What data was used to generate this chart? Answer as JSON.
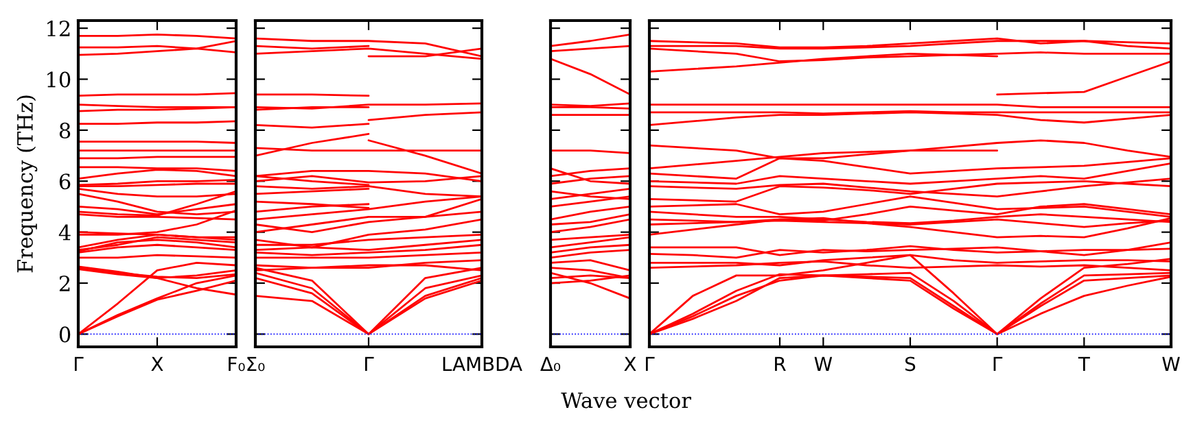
{
  "chart_data": [
    {
      "type": "line",
      "ylabel": "Frequency (THz)",
      "ylim": [
        -0.5,
        12.3
      ],
      "yticks": [
        0,
        2,
        4,
        6,
        8,
        10,
        12
      ],
      "categories": [
        "Γ",
        null,
        "X",
        null,
        "F₀"
      ],
      "ref_lines": [
        {
          "axis": "y",
          "value": 0,
          "color": "#0000ff",
          "line_style": "dotted"
        }
      ],
      "series": [
        {
          "color": "#ff0000",
          "values": [
            0,
            0.7,
            1.35,
            1.7,
            2.1
          ]
        },
        {
          "color": "#ff0000",
          "values": [
            0,
            0.75,
            1.4,
            2.0,
            2.3
          ]
        },
        {
          "color": "#ff0000",
          "values": [
            0,
            1.2,
            2.5,
            2.8,
            2.7
          ]
        },
        {
          "color": "#ff0000",
          "values": [
            2.6,
            2.4,
            2.25,
            2.2,
            2.35
          ]
        },
        {
          "color": "#ff0000",
          "values": [
            2.65,
            2.45,
            2.2,
            1.8,
            1.55
          ]
        },
        {
          "color": "#ff0000",
          "values": [
            2.55,
            2.35,
            2.2,
            2.3,
            2.5
          ]
        },
        {
          "color": "#ff0000",
          "values": [
            3.0,
            3.0,
            3.1,
            3.05,
            3.0
          ]
        },
        {
          "color": "#ff0000",
          "values": [
            3.2,
            3.4,
            3.5,
            3.4,
            3.3
          ]
        },
        {
          "color": "#ff0000",
          "values": [
            3.25,
            3.6,
            3.7,
            3.6,
            3.4
          ]
        },
        {
          "color": "#ff0000",
          "values": [
            3.3,
            3.5,
            3.8,
            3.7,
            3.6
          ]
        },
        {
          "color": "#ff0000",
          "values": [
            3.4,
            3.7,
            3.9,
            3.8,
            3.8
          ]
        },
        {
          "color": "#ff0000",
          "values": [
            3.9,
            3.9,
            4.0,
            4.3,
            4.85
          ]
        },
        {
          "color": "#ff0000",
          "values": [
            4.0,
            3.95,
            3.9,
            3.8,
            3.7
          ]
        },
        {
          "color": "#ff0000",
          "values": [
            4.7,
            4.6,
            4.6,
            4.55,
            4.5
          ]
        },
        {
          "color": "#ff0000",
          "values": [
            4.8,
            4.7,
            4.65,
            5.1,
            5.6
          ]
        },
        {
          "color": "#ff0000",
          "values": [
            5.0,
            4.9,
            4.7,
            4.9,
            5.1
          ]
        },
        {
          "color": "#ff0000",
          "values": [
            5.5,
            5.2,
            4.8,
            4.7,
            4.8
          ]
        },
        {
          "color": "#ff0000",
          "values": [
            5.7,
            5.5,
            5.4,
            5.4,
            5.5
          ]
        },
        {
          "color": "#ff0000",
          "values": [
            5.8,
            5.8,
            5.85,
            5.9,
            5.9
          ]
        },
        {
          "color": "#ff0000",
          "values": [
            5.85,
            5.9,
            6.0,
            6.0,
            6.05
          ]
        },
        {
          "color": "#ff0000",
          "values": [
            6.1,
            6.3,
            6.45,
            6.4,
            6.2
          ]
        },
        {
          "color": "#ff0000",
          "values": [
            6.55,
            6.55,
            6.5,
            6.5,
            6.4
          ]
        },
        {
          "color": "#ff0000",
          "values": [
            6.9,
            6.9,
            6.95,
            6.95,
            6.95
          ]
        },
        {
          "color": "#ff0000",
          "values": [
            7.2,
            7.2,
            7.2,
            7.2,
            7.2
          ]
        },
        {
          "color": "#ff0000",
          "values": [
            7.55,
            7.55,
            7.55,
            7.55,
            7.5
          ]
        },
        {
          "color": "#ff0000",
          "values": [
            8.25,
            8.25,
            8.3,
            8.3,
            8.35
          ]
        },
        {
          "color": "#ff0000",
          "values": [
            8.75,
            8.8,
            8.8,
            8.85,
            8.9
          ]
        },
        {
          "color": "#ff0000",
          "values": [
            9.0,
            8.95,
            8.9,
            8.9,
            8.9
          ]
        },
        {
          "color": "#ff0000",
          "values": [
            9.35,
            9.4,
            9.4,
            9.4,
            9.45
          ]
        },
        {
          "color": "#ff0000",
          "values": [
            10.95,
            11.0,
            11.1,
            11.2,
            11.5
          ]
        },
        {
          "color": "#ff0000",
          "values": [
            11.25,
            11.25,
            11.3,
            11.2,
            11.05
          ]
        },
        {
          "color": "#ff0000",
          "values": [
            11.7,
            11.7,
            11.75,
            11.7,
            11.6
          ]
        }
      ]
    },
    {
      "type": "line",
      "tick_labels": "x",
      "ylim": [
        -0.5,
        12.3
      ],
      "yticks": [
        0,
        2,
        4,
        6,
        8,
        10,
        12
      ],
      "categories": [
        "Σ₀",
        null,
        "Γ",
        null,
        "LAMBDA"
      ],
      "ref_lines": [
        {
          "axis": "y",
          "value": 0,
          "color": "#0000ff",
          "line_style": "dotted"
        }
      ],
      "series": [
        {
          "color": "#ff0000",
          "values": [
            1.5,
            1.3,
            0,
            1.4,
            2.1
          ]
        },
        {
          "color": "#ff0000",
          "values": [
            2.2,
            1.6,
            0,
            1.5,
            2.2
          ]
        },
        {
          "color": "#ff0000",
          "values": [
            2.4,
            1.8,
            0,
            1.8,
            2.3
          ]
        },
        {
          "color": "#ff0000",
          "values": [
            2.6,
            2.1,
            0,
            2.2,
            2.6
          ]
        },
        {
          "color": "#ff0000",
          "values": [
            2.5,
            2.6,
            2.7,
            2.7,
            2.5
          ]
        },
        {
          "color": "#ff0000",
          "values": [
            2.7,
            2.6,
            2.6,
            2.8,
            2.9
          ]
        },
        {
          "color": "#ff0000",
          "values": [
            3.0,
            3.0,
            3.0,
            3.1,
            3.2
          ]
        },
        {
          "color": "#ff0000",
          "values": [
            3.2,
            3.1,
            3.2,
            3.3,
            3.5
          ]
        },
        {
          "color": "#ff0000",
          "values": [
            3.3,
            3.4,
            3.3,
            3.5,
            3.7
          ]
        },
        {
          "color": "#ff0000",
          "values": [
            3.5,
            3.5,
            3.7,
            3.8,
            3.9
          ]
        },
        {
          "color": "#ff0000",
          "values": [
            3.7,
            3.4,
            3.9,
            4.1,
            4.5
          ]
        },
        {
          "color": "#ff0000",
          "values": [
            4.3,
            4.0,
            4.4,
            4.6,
            4.8
          ]
        },
        {
          "color": "#ff0000",
          "values": [
            4.0,
            4.3,
            4.6,
            4.6,
            5.3
          ]
        },
        {
          "color": "#ff0000",
          "values": [
            4.5,
            4.7,
            4.9,
            5.2,
            5.4
          ]
        },
        {
          "color": "#ff0000",
          "values": [
            4.8,
            5.0,
            5.1,
            null,
            null
          ]
        },
        {
          "color": "#ff0000",
          "values": [
            5.2,
            5.1,
            4.95,
            null,
            null
          ]
        },
        {
          "color": "#ff0000",
          "values": [
            5.5,
            5.6,
            5.7,
            null,
            null
          ]
        },
        {
          "color": "#ff0000",
          "values": [
            5.8,
            5.7,
            5.8,
            5.5,
            5.4
          ]
        },
        {
          "color": "#ff0000",
          "values": [
            6.0,
            6.2,
            5.95,
            6.0,
            6.2
          ]
        },
        {
          "color": "#ff0000",
          "values": [
            6.2,
            6.4,
            6.4,
            6.3,
            6.0
          ]
        },
        {
          "color": "#ff0000",
          "values": [
            6.2,
            6.0,
            5.85,
            null,
            null
          ]
        },
        {
          "color": "#ff0000",
          "values": [
            7.0,
            7.5,
            7.85,
            null,
            null
          ]
        },
        {
          "color": "#ff0000",
          "values": [
            7.3,
            7.2,
            7.2,
            7.2,
            7.2
          ]
        },
        {
          "color": "#ff0000",
          "values": [
            null,
            null,
            7.6,
            7.0,
            6.3
          ]
        },
        {
          "color": "#ff0000",
          "values": [
            8.2,
            8.1,
            8.25,
            null,
            null
          ]
        },
        {
          "color": "#ff0000",
          "values": [
            null,
            null,
            8.4,
            8.6,
            8.7
          ]
        },
        {
          "color": "#ff0000",
          "values": [
            8.8,
            8.9,
            8.9,
            null,
            null
          ]
        },
        {
          "color": "#ff0000",
          "values": [
            8.9,
            8.85,
            9.0,
            9.0,
            9.05
          ]
        },
        {
          "color": "#ff0000",
          "values": [
            9.4,
            9.4,
            9.35,
            null,
            null
          ]
        },
        {
          "color": "#ff0000",
          "values": [
            null,
            null,
            10.9,
            10.9,
            11.2
          ]
        },
        {
          "color": "#ff0000",
          "values": [
            11.0,
            11.1,
            11.2,
            11.0,
            10.8
          ]
        },
        {
          "color": "#ff0000",
          "values": [
            11.3,
            11.2,
            11.3,
            null,
            null
          ]
        },
        {
          "color": "#ff0000",
          "values": [
            11.6,
            11.5,
            11.5,
            11.4,
            10.9
          ]
        }
      ]
    },
    {
      "type": "line",
      "tick_labels": "x",
      "ylim": [
        -0.5,
        12.3
      ],
      "yticks": [
        0,
        2,
        4,
        6,
        8,
        10,
        12
      ],
      "categories": [
        "Δ₀",
        null,
        "X"
      ],
      "ref_lines": [
        {
          "axis": "y",
          "value": 0,
          "color": "#0000ff",
          "line_style": "dotted"
        }
      ],
      "series": [
        {
          "color": "#ff0000",
          "values": [
            2.0,
            2.1,
            2.3
          ]
        },
        {
          "color": "#ff0000",
          "values": [
            2.2,
            2.3,
            2.2
          ]
        },
        {
          "color": "#ff0000",
          "values": [
            2.4,
            2.0,
            1.4
          ]
        },
        {
          "color": "#ff0000",
          "values": [
            2.6,
            2.5,
            2.2
          ]
        },
        {
          "color": "#ff0000",
          "values": [
            2.8,
            2.9,
            2.5
          ]
        },
        {
          "color": "#ff0000",
          "values": [
            3.0,
            3.2,
            3.3
          ]
        },
        {
          "color": "#ff0000",
          "values": [
            3.2,
            3.4,
            3.5
          ]
        },
        {
          "color": "#ff0000",
          "values": [
            3.4,
            3.6,
            3.8
          ]
        },
        {
          "color": "#ff0000",
          "values": [
            3.7,
            3.8,
            3.9
          ]
        },
        {
          "color": "#ff0000",
          "values": [
            4.0,
            4.2,
            4.5
          ]
        },
        {
          "color": "#ff0000",
          "values": [
            4.3,
            4.4,
            4.7
          ]
        },
        {
          "color": "#ff0000",
          "values": [
            4.5,
            4.8,
            5.0
          ]
        },
        {
          "color": "#ff0000",
          "values": [
            5.0,
            5.2,
            5.4
          ]
        },
        {
          "color": "#ff0000",
          "values": [
            5.3,
            5.5,
            5.7
          ]
        },
        {
          "color": "#ff0000",
          "values": [
            5.6,
            5.4,
            5.3
          ]
        },
        {
          "color": "#ff0000",
          "values": [
            5.9,
            6.1,
            6.2
          ]
        },
        {
          "color": "#ff0000",
          "values": [
            6.2,
            6.4,
            6.5
          ]
        },
        {
          "color": "#ff0000",
          "values": [
            6.5,
            6.0,
            5.9
          ]
        },
        {
          "color": "#ff0000",
          "values": [
            7.2,
            7.2,
            7.1
          ]
        },
        {
          "color": "#ff0000",
          "values": [
            8.6,
            8.6,
            8.6
          ]
        },
        {
          "color": "#ff0000",
          "values": [
            8.9,
            8.9,
            8.85
          ]
        },
        {
          "color": "#ff0000",
          "values": [
            9.0,
            8.95,
            9.05
          ]
        },
        {
          "color": "#ff0000",
          "values": [
            10.8,
            10.2,
            9.4
          ]
        },
        {
          "color": "#ff0000",
          "values": [
            11.1,
            11.2,
            11.3
          ]
        },
        {
          "color": "#ff0000",
          "values": [
            11.3,
            11.5,
            11.75
          ]
        }
      ]
    },
    {
      "type": "line",
      "tick_labels": "x",
      "xlabel": "Wave vector",
      "ylim": [
        -0.5,
        12.3
      ],
      "yticks": [
        0,
        2,
        4,
        6,
        8,
        10,
        12
      ],
      "categories": [
        "Γ",
        null,
        null,
        "R",
        "W",
        null,
        "S",
        null,
        "Γ",
        null,
        "T",
        null,
        "W"
      ],
      "ref_lines": [
        {
          "axis": "y",
          "value": 0,
          "color": "#0000ff",
          "line_style": "dotted"
        }
      ],
      "series": [
        {
          "color": "#ff0000",
          "values": [
            0,
            0.7,
            1.5,
            2.1,
            2.3,
            2.25,
            2.2,
            1.1,
            0,
            0.8,
            1.5,
            1.9,
            2.25
          ]
        },
        {
          "color": "#ff0000",
          "values": [
            0,
            0.6,
            1.3,
            2.2,
            2.3,
            2.2,
            2.1,
            1.0,
            0,
            1.1,
            2.1,
            2.2,
            2.3
          ]
        },
        {
          "color": "#ff0000",
          "values": [
            0,
            0.8,
            1.7,
            2.35,
            2.3,
            2.35,
            2.4,
            1.3,
            0,
            1.2,
            2.3,
            2.35,
            2.4
          ]
        },
        {
          "color": "#ff0000",
          "values": [
            0,
            1.5,
            2.3,
            2.3,
            2.5,
            2.8,
            3.1,
            1.6,
            0,
            1.4,
            2.6,
            2.75,
            2.95
          ]
        },
        {
          "color": "#ff0000",
          "values": [
            2.6,
            2.65,
            2.7,
            2.8,
            2.85,
            2.7,
            2.6,
            2.65,
            2.7,
            2.65,
            2.7,
            2.6,
            2.5
          ]
        },
        {
          "color": "#ff0000",
          "values": [
            2.8,
            2.8,
            2.8,
            2.7,
            2.9,
            3.0,
            3.1,
            2.9,
            2.8,
            2.85,
            2.9,
            2.9,
            2.85
          ]
        },
        {
          "color": "#ff0000",
          "values": [
            3.15,
            3.1,
            3.0,
            3.3,
            3.2,
            3.3,
            3.45,
            3.3,
            3.2,
            3.25,
            3.3,
            3.3,
            3.35
          ]
        },
        {
          "color": "#ff0000",
          "values": [
            3.4,
            3.4,
            3.4,
            3.1,
            3.3,
            3.25,
            3.3,
            3.35,
            3.4,
            3.25,
            3.1,
            3.3,
            3.6
          ]
        },
        {
          "color": "#ff0000",
          "values": [
            3.9,
            4.1,
            4.3,
            4.5,
            4.55,
            4.35,
            4.2,
            4.0,
            3.8,
            3.85,
            3.8,
            4.15,
            4.55
          ]
        },
        {
          "color": "#ff0000",
          "values": [
            4.3,
            4.35,
            4.4,
            4.45,
            4.4,
            4.35,
            4.3,
            4.4,
            4.5,
            4.35,
            4.2,
            4.35,
            4.45
          ]
        },
        {
          "color": "#ff0000",
          "values": [
            4.5,
            4.45,
            4.4,
            4.5,
            4.45,
            4.7,
            5.0,
            4.85,
            4.7,
            5.0,
            5.1,
            4.9,
            4.7
          ]
        },
        {
          "color": "#ff0000",
          "values": [
            4.8,
            4.7,
            4.6,
            4.6,
            4.5,
            4.4,
            4.35,
            4.45,
            4.6,
            4.7,
            4.6,
            4.5,
            4.4
          ]
        },
        {
          "color": "#ff0000",
          "values": [
            5.0,
            5.05,
            5.1,
            4.7,
            4.8,
            5.1,
            5.4,
            5.15,
            4.9,
            4.95,
            5.0,
            4.8,
            4.6
          ]
        },
        {
          "color": "#ff0000",
          "values": [
            5.3,
            5.25,
            5.2,
            5.8,
            5.75,
            5.65,
            5.5,
            5.7,
            5.9,
            5.95,
            6.0,
            5.9,
            5.8
          ]
        },
        {
          "color": "#ff0000",
          "values": [
            5.8,
            5.75,
            5.7,
            5.85,
            5.9,
            5.75,
            5.6,
            5.5,
            5.4,
            5.6,
            5.8,
            5.95,
            6.1
          ]
        },
        {
          "color": "#ff0000",
          "values": [
            6.0,
            5.95,
            5.9,
            6.2,
            6.1,
            6.0,
            5.9,
            6.0,
            6.1,
            6.2,
            6.1,
            6.4,
            6.7
          ]
        },
        {
          "color": "#ff0000",
          "values": [
            6.3,
            6.2,
            6.1,
            6.9,
            6.8,
            6.55,
            6.3,
            6.4,
            6.5,
            6.55,
            6.6,
            6.75,
            6.9
          ]
        },
        {
          "color": "#ff0000",
          "values": [
            6.5,
            6.65,
            6.8,
            6.95,
            7.1,
            7.15,
            7.2,
            7.35,
            7.5,
            7.6,
            7.5,
            7.2,
            6.95
          ]
        },
        {
          "color": "#ff0000",
          "values": [
            7.4,
            7.3,
            7.2,
            6.9,
            6.9,
            7.05,
            7.2,
            7.2,
            7.2,
            null,
            null,
            null,
            null
          ]
        },
        {
          "color": "#ff0000",
          "values": [
            8.2,
            8.35,
            8.5,
            8.6,
            8.6,
            8.65,
            8.7,
            8.65,
            8.6,
            8.4,
            8.3,
            8.45,
            8.6
          ]
        },
        {
          "color": "#ff0000",
          "values": [
            8.7,
            8.7,
            8.7,
            8.7,
            8.65,
            8.7,
            8.75,
            8.7,
            8.7,
            8.7,
            8.7,
            8.7,
            8.7
          ]
        },
        {
          "color": "#ff0000",
          "values": [
            9.0,
            9.0,
            9.0,
            9.0,
            9.0,
            9.0,
            9.0,
            9.0,
            9.0,
            8.9,
            8.9,
            8.9,
            8.9
          ]
        },
        {
          "color": "#ff0000",
          "values": [
            null,
            null,
            null,
            null,
            null,
            null,
            null,
            null,
            9.4,
            9.45,
            9.5,
            10.1,
            10.7
          ]
        },
        {
          "color": "#ff0000",
          "values": [
            10.3,
            10.4,
            10.5,
            10.65,
            10.8,
            10.9,
            11.0,
            10.95,
            10.9,
            null,
            null,
            null,
            null
          ]
        },
        {
          "color": "#ff0000",
          "values": [
            11.2,
            11.1,
            11.0,
            10.7,
            10.75,
            10.85,
            10.9,
            10.95,
            11.0,
            11.05,
            11.0,
            11.0,
            11.0
          ]
        },
        {
          "color": "#ff0000",
          "values": [
            11.3,
            11.3,
            11.3,
            11.2,
            11.2,
            11.25,
            11.3,
            11.4,
            11.5,
            11.5,
            11.5,
            11.3,
            11.2
          ]
        },
        {
          "color": "#ff0000",
          "values": [
            11.5,
            11.45,
            11.4,
            11.25,
            11.25,
            11.3,
            11.4,
            11.5,
            11.6,
            11.4,
            11.5,
            11.45,
            11.4
          ]
        }
      ]
    }
  ]
}
